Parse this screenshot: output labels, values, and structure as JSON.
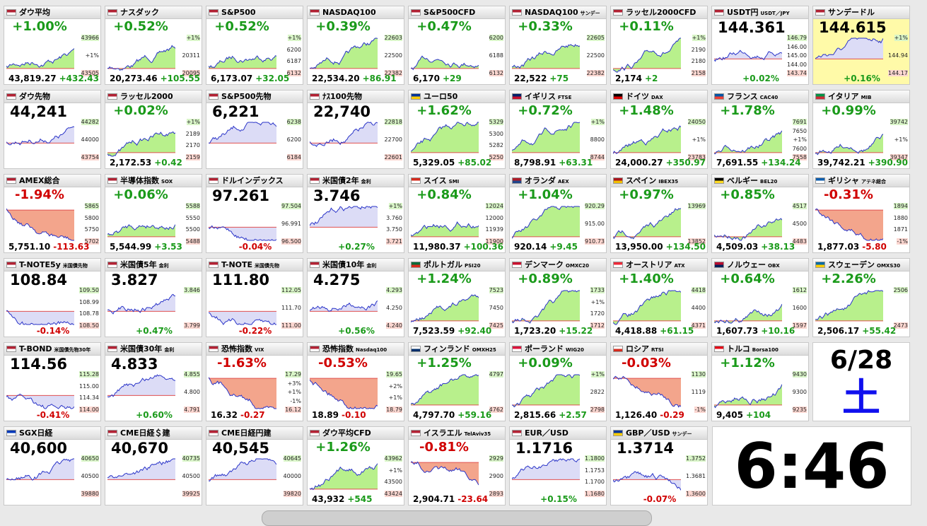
{
  "tiles": [
    {
      "name": "ダウ平均",
      "top": "+1.00%",
      "bottom": [
        "43,819.27",
        "+432.43"
      ],
      "labels": [
        "43966",
        "+1%",
        "43505"
      ]
    },
    {
      "name": "ナスダック",
      "top": "+0.52%",
      "bottom": [
        "20,273.46",
        "+105.55"
      ],
      "labels": [
        "+1%",
        "20311",
        "20095"
      ]
    },
    {
      "name": "S&P500",
      "top": "+0.52%",
      "bottom": [
        "6,173.07",
        "+32.05"
      ],
      "labels": [
        "+1%",
        "6200",
        "6187",
        "6132"
      ]
    },
    {
      "name": "NASDAQ100",
      "top": "+0.39%",
      "bottom": [
        "22,534.20",
        "+86.91"
      ],
      "labels": [
        "22603",
        "22500",
        "22382"
      ]
    },
    {
      "name": "S&P500CFD",
      "top": "+0.47%",
      "bottom": [
        "6,170",
        "+29"
      ],
      "labels": [
        "6200",
        "6188",
        "6132"
      ]
    },
    {
      "name": "NASDAQ100",
      "sub": "サンデー",
      "top": "+0.33%",
      "bottom": [
        "22,522",
        "+75"
      ],
      "labels": [
        "22605",
        "22500",
        "22382"
      ]
    },
    {
      "name": "ラッセル2000CFD",
      "top": "+0.11%",
      "bottom": [
        "2,174",
        "+2"
      ],
      "labels": [
        "+1%",
        "2190",
        "2180",
        "2158"
      ]
    },
    {
      "name": "USDT円",
      "sub": "USDT／JPY",
      "top": "144.361",
      "bottom": [
        "+0.02%"
      ],
      "labels": [
        "146.79",
        "146.00",
        "145.00",
        "144.00",
        "143.74"
      ]
    },
    {
      "name": "サンデードル",
      "top": "144.615",
      "highlight": true,
      "bottom": [
        "+0.16%"
      ],
      "labels": [
        "+1%",
        "144.94",
        "144.17"
      ]
    },
    {
      "name": "ダウ先物",
      "top": "44,241",
      "labels": [
        "44282",
        "44000",
        "43754"
      ]
    },
    {
      "name": "ラッセル2000",
      "top": "+0.02%",
      "bottom": [
        "2,172.53",
        "+0.42"
      ],
      "labels": [
        "+1%",
        "2189",
        "2170",
        "2159"
      ]
    },
    {
      "name": "S&P500先物",
      "top": "6,221",
      "labels": [
        "6238",
        "6200",
        "6184"
      ]
    },
    {
      "name": "ﾅｽ100先物",
      "top": "22,740",
      "labels": [
        "22818",
        "22700",
        "22601"
      ]
    },
    {
      "name": "ユーロ50",
      "top": "+1.62%",
      "bottom": [
        "5,329.05",
        "+85.02"
      ],
      "labels": [
        "5329",
        "5300",
        "5282",
        "5250"
      ]
    },
    {
      "name": "イギリス",
      "sub": "FTSE",
      "top": "+0.72%",
      "bottom": [
        "8,798.91",
        "+63.31"
      ],
      "labels": [
        "+1%",
        "8800",
        "8744"
      ]
    },
    {
      "name": "ドイツ",
      "sub": "DAX",
      "top": "+1.48%",
      "bottom": [
        "24,000.27",
        "+350.97"
      ],
      "labels": [
        "24050",
        "+1%",
        "23783"
      ]
    },
    {
      "name": "フランス",
      "sub": "CAC40",
      "top": "+1.78%",
      "bottom": [
        "7,691.55",
        "+134.24"
      ],
      "labels": [
        "7691",
        "7650",
        "+1%",
        "7600",
        "7558"
      ]
    },
    {
      "name": "イタリア",
      "sub": "MIB",
      "top": "+0.99%",
      "bottom": [
        "39,742.21",
        "+390.90"
      ],
      "labels": [
        "39742",
        "+1%",
        "39347"
      ]
    },
    {
      "name": "AMEX総合",
      "top": "-1.94%",
      "bottom": [
        "5,751.10",
        "-113.63"
      ],
      "labels": [
        "5865",
        "5800",
        "5750",
        "5702"
      ]
    },
    {
      "name": "半導体指数",
      "sub": "SOX",
      "top": "+0.06%",
      "bottom": [
        "5,544.99",
        "+3.53"
      ],
      "labels": [
        "5588",
        "5550",
        "5500",
        "5488"
      ]
    },
    {
      "name": "ドルインデックス",
      "top": "97.261",
      "bottom": [
        "-0.04%"
      ],
      "labels": [
        "97.504",
        "96.991",
        "96.500"
      ]
    },
    {
      "name": "米国債2年",
      "sub": "金利",
      "top": "3.746",
      "bottom": [
        "+0.27%"
      ],
      "labels": [
        "+1%",
        "3.760",
        "3.750",
        "3.721"
      ]
    },
    {
      "name": "スイス",
      "sub": "SMI",
      "top": "+0.84%",
      "bottom": [
        "11,980.37",
        "+100.36"
      ],
      "labels": [
        "12024",
        "12000",
        "11939",
        "11900"
      ]
    },
    {
      "name": "オランダ",
      "sub": "AEX",
      "top": "+1.04%",
      "bottom": [
        "920.14",
        "+9.45"
      ],
      "labels": [
        "920.29",
        "915.00",
        "910.73"
      ]
    },
    {
      "name": "スペイン",
      "sub": "IBEX35",
      "top": "+0.97%",
      "bottom": [
        "13,950.00",
        "+134.50"
      ],
      "labels": [
        "13969",
        "13852"
      ]
    },
    {
      "name": "ベルギー",
      "sub": "BEL20",
      "top": "+0.85%",
      "bottom": [
        "4,509.03",
        "+38.13"
      ],
      "labels": [
        "4517",
        "4500",
        "4483"
      ]
    },
    {
      "name": "ギリシャ",
      "sub": "アテネ総合",
      "top": "-0.31%",
      "bottom": [
        "1,877.03",
        "-5.80"
      ],
      "labels": [
        "1894",
        "1880",
        "1871",
        "-1%"
      ]
    },
    {
      "name": "T-NOTE5y",
      "sub": "米国債先物",
      "top": "108.84",
      "bottom": [
        "-0.14%"
      ],
      "labels": [
        "109.50",
        "108.99",
        "108.78",
        "108.50"
      ]
    },
    {
      "name": "米国債5年",
      "sub": "金利",
      "top": "3.827",
      "bottom": [
        "+0.47%"
      ],
      "labels": [
        "3.846",
        "3.799"
      ]
    },
    {
      "name": "T-NOTE",
      "sub": "米国債先物",
      "top": "111.80",
      "bottom": [
        "-0.22%"
      ],
      "labels": [
        "112.05",
        "111.70",
        "111.00"
      ]
    },
    {
      "name": "米国債10年",
      "sub": "金利",
      "top": "4.275",
      "bottom": [
        "+0.56%"
      ],
      "labels": [
        "4.293",
        "4.250",
        "4.240"
      ]
    },
    {
      "name": "ポルトガル",
      "sub": "PSI20",
      "top": "+1.24%",
      "bottom": [
        "7,523.59",
        "+92.40"
      ],
      "labels": [
        "7523",
        "7450",
        "7425"
      ]
    },
    {
      "name": "デンマーク",
      "sub": "OMXC20",
      "top": "+0.89%",
      "bottom": [
        "1,723.20",
        "+15.22"
      ],
      "labels": [
        "1733",
        "+1%",
        "1720",
        "1712"
      ]
    },
    {
      "name": "オーストリア",
      "sub": "ATX",
      "top": "+1.40%",
      "bottom": [
        "4,418.88",
        "+61.15"
      ],
      "labels": [
        "4418",
        "4400",
        "4371"
      ]
    },
    {
      "name": "ノルウェー",
      "sub": "OBX",
      "top": "+0.64%",
      "bottom": [
        "1,607.73",
        "+10.16"
      ],
      "labels": [
        "1612",
        "1600",
        "1597"
      ]
    },
    {
      "name": "スウェーデン",
      "sub": "OMXS30",
      "top": "+2.26%",
      "bottom": [
        "2,506.17",
        "+55.42"
      ],
      "labels": [
        "2506",
        "2473"
      ]
    },
    {
      "name": "T-BOND",
      "sub": "米国債先物30年",
      "top": "114.56",
      "bottom": [
        "-0.41%"
      ],
      "labels": [
        "115.28",
        "115.00",
        "114.34",
        "114.00"
      ]
    },
    {
      "name": "米国債30年",
      "sub": "金利",
      "top": "4.833",
      "bottom": [
        "+0.60%"
      ],
      "labels": [
        "4.855",
        "4.800",
        "4.791"
      ]
    },
    {
      "name": "恐怖指数",
      "sub": "VIX",
      "top": "-1.63%",
      "bottom": [
        "16.32",
        "-0.27"
      ],
      "labels": [
        "17.29",
        "+3%",
        "+1%",
        "-1%",
        "16.12"
      ]
    },
    {
      "name": "恐怖指数",
      "sub": "Nasdaq100",
      "top": "-0.53%",
      "bottom": [
        "18.89",
        "-0.10"
      ],
      "labels": [
        "19.65",
        "+2%",
        "+1%",
        "18.79"
      ]
    },
    {
      "name": "フィンランド",
      "sub": "OMXH25",
      "top": "+1.25%",
      "bottom": [
        "4,797.70",
        "+59.16"
      ],
      "labels": [
        "4797",
        "4762"
      ]
    },
    {
      "name": "ポーランド",
      "sub": "WIG20",
      "top": "+0.09%",
      "bottom": [
        "2,815.66",
        "+2.57"
      ],
      "labels": [
        "+1%",
        "2822",
        "2798"
      ]
    },
    {
      "name": "ロシア",
      "sub": "RTSI",
      "top": "-0.03%",
      "bottom": [
        "1,126.40",
        "-0.29"
      ],
      "labels": [
        "1130",
        "1119",
        "-1%"
      ]
    },
    {
      "name": "トルコ",
      "sub": "Borsa100",
      "top": "+1.12%",
      "bottom": [
        "9,405",
        "+104"
      ],
      "labels": [
        "9430",
        "9300",
        "9235"
      ]
    },
    {
      "name": "SGX日経",
      "top": "40,600",
      "labels": [
        "40650",
        "40500",
        "39880"
      ]
    },
    {
      "name": "CME日経＄建",
      "top": "40,670",
      "labels": [
        "40735",
        "40500",
        "39925"
      ]
    },
    {
      "name": "CME日経円建",
      "top": "40,545",
      "labels": [
        "40645",
        "40000",
        "39820"
      ]
    },
    {
      "name": "ダウ平均CFD",
      "top": "+1.26%",
      "bottom": [
        "43,932",
        "+545"
      ],
      "labels": [
        "43962",
        "+1%",
        "43500",
        "43424"
      ]
    },
    {
      "name": "イスラエル",
      "sub": "TelAviv35",
      "top": "-0.81%",
      "bottom": [
        "2,904.71",
        "-23.64"
      ],
      "labels": [
        "2929",
        "2900",
        "2893"
      ]
    },
    {
      "name": "EUR／USD",
      "top": "1.1716",
      "bottom": [
        "+0.15%"
      ],
      "labels": [
        "1.1800",
        "1.1753",
        "1.1700",
        "1.1680"
      ]
    },
    {
      "name": "GBP／USD",
      "sub": "サンデー",
      "top": "1.3714",
      "bottom": [
        "-0.07%"
      ],
      "labels": [
        "1.3752",
        "1.3681",
        "1.3600"
      ]
    }
  ],
  "clock": {
    "date": "6/28",
    "weekday": "土",
    "time": "6:46"
  }
}
